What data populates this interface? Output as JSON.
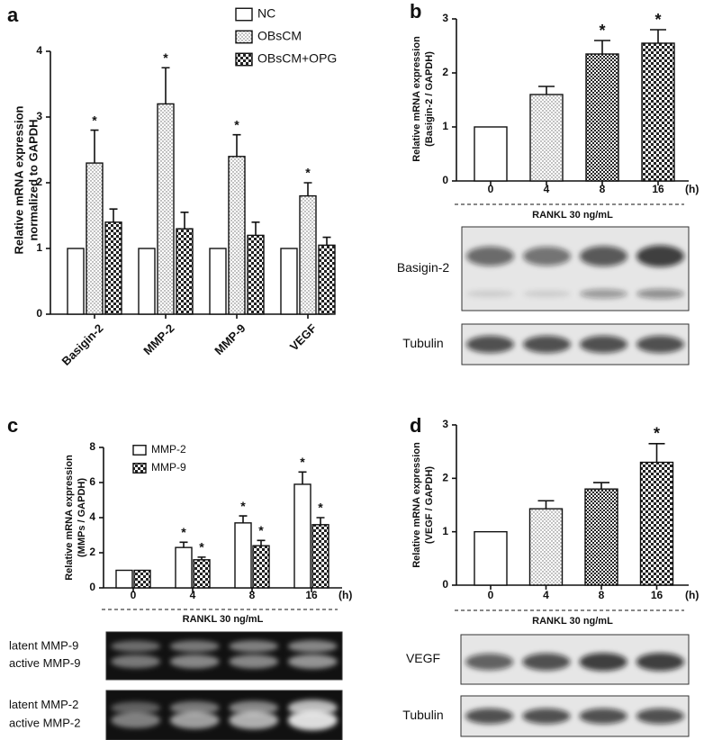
{
  "chart_data": [
    {
      "type": "bar",
      "panel": "a",
      "ylabel": [
        "Relative mRNA expression",
        "normalized to GAPDH"
      ],
      "categories": [
        "Basigin-2",
        "MMP-2",
        "MMP-9",
        "VEGF"
      ],
      "series": [
        {
          "name": "NC",
          "pattern": "white",
          "values": [
            1,
            1,
            1,
            1
          ],
          "errors": [
            0,
            0,
            0,
            0
          ],
          "significance": [
            null,
            null,
            null,
            null
          ]
        },
        {
          "name": "OBsCM",
          "pattern": "dots",
          "values": [
            2.3,
            3.2,
            2.4,
            1.8
          ],
          "errors": [
            0.5,
            0.55,
            0.33,
            0.2
          ],
          "significance": [
            "*",
            "*",
            "*",
            "*"
          ]
        },
        {
          "name": "OBsCM+OPG",
          "pattern": "checker",
          "values": [
            1.4,
            1.3,
            1.2,
            1.05
          ],
          "errors": [
            0.2,
            0.25,
            0.2,
            0.12
          ],
          "significance": [
            null,
            null,
            null,
            null
          ]
        }
      ],
      "ylim": [
        0,
        4
      ],
      "yticks": [
        0,
        1,
        2,
        3,
        4
      ],
      "legend": "top-right"
    },
    {
      "type": "bar",
      "panel": "b",
      "ylabel": [
        "Relative mRNA expression",
        "(Basigin-2 / GAPDH)"
      ],
      "categories": [
        "0",
        "4",
        "8",
        "16"
      ],
      "x_unit": "(h)",
      "xlabel": "RANKL   30 ng/mL",
      "values": [
        1,
        1.6,
        2.35,
        2.55
      ],
      "errors": [
        0,
        0.15,
        0.25,
        0.25
      ],
      "fills": [
        "white",
        "dots",
        "checker-fine",
        "checker"
      ],
      "significance": [
        null,
        null,
        "*",
        "*"
      ],
      "ylim": [
        0,
        3
      ],
      "yticks": [
        0,
        1,
        2,
        3
      ],
      "blots": [
        "Basigin-2",
        "Tubulin"
      ]
    },
    {
      "type": "bar",
      "panel": "c",
      "ylabel": [
        "Relative mRNA expression",
        "(MMPs / GAPDH)"
      ],
      "categories": [
        "0",
        "4",
        "8",
        "16"
      ],
      "x_unit": "(h)",
      "xlabel": "RANKL   30 ng/mL",
      "series": [
        {
          "name": "MMP-2",
          "pattern": "white",
          "values": [
            1,
            2.3,
            3.7,
            5.9
          ],
          "errors": [
            0,
            0.3,
            0.4,
            0.7
          ],
          "significance": [
            null,
            "*",
            "*",
            "*"
          ]
        },
        {
          "name": "MMP-9",
          "pattern": "checker",
          "values": [
            1,
            1.6,
            2.4,
            3.6
          ],
          "errors": [
            0,
            0.15,
            0.3,
            0.4
          ],
          "significance": [
            null,
            "*",
            "*",
            "*"
          ]
        }
      ],
      "ylim": [
        0,
        8
      ],
      "yticks": [
        0,
        2,
        4,
        6,
        8
      ],
      "legend": "top-left",
      "blots": [
        [
          "latent MMP-9",
          "active MMP-9"
        ],
        [
          "latent MMP-2",
          "active MMP-2"
        ]
      ]
    },
    {
      "type": "bar",
      "panel": "d",
      "ylabel": [
        "Relative mRNA expression",
        "(VEGF / GAPDH)"
      ],
      "categories": [
        "0",
        "4",
        "8",
        "16"
      ],
      "x_unit": "(h)",
      "xlabel": "RANKL   30 ng/mL",
      "values": [
        1,
        1.43,
        1.8,
        2.3
      ],
      "errors": [
        0,
        0.15,
        0.12,
        0.35
      ],
      "fills": [
        "white",
        "dots",
        "checker-fine",
        "checker"
      ],
      "significance": [
        null,
        null,
        null,
        "*"
      ],
      "ylim": [
        0,
        3
      ],
      "yticks": [
        0,
        1,
        2,
        3
      ],
      "blots": [
        "VEGF",
        "Tubulin"
      ]
    }
  ]
}
